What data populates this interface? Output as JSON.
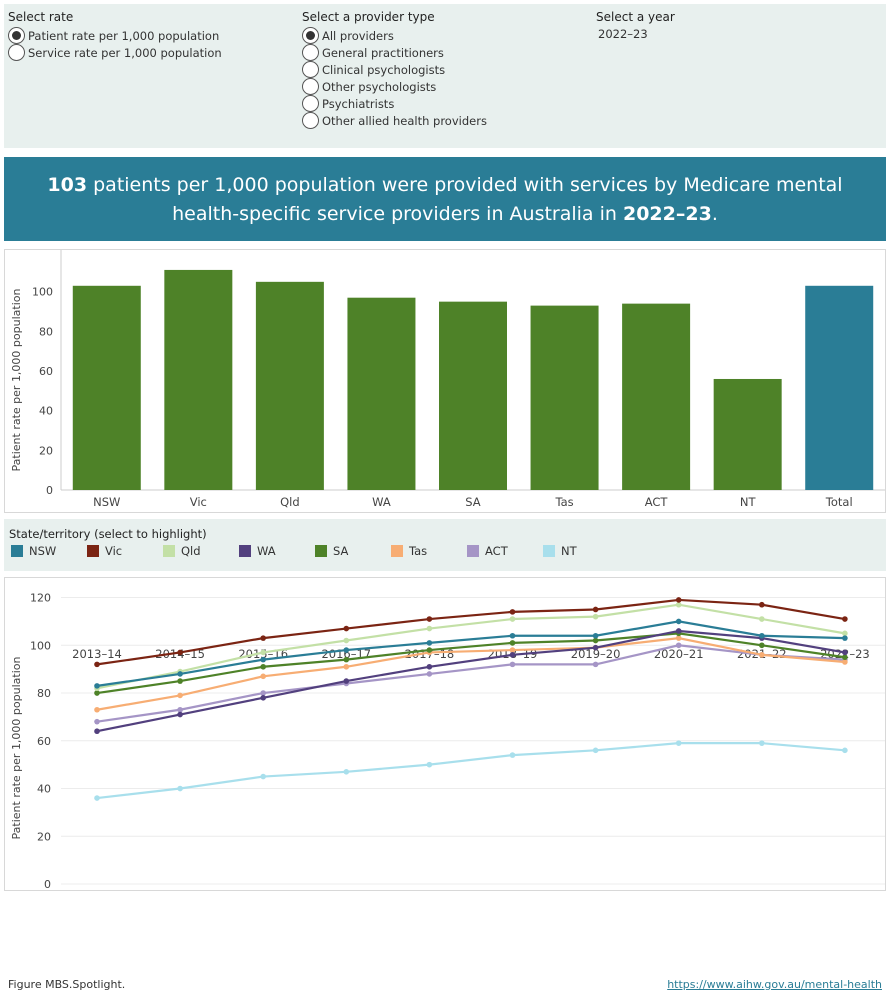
{
  "controls": {
    "rate": {
      "title": "Select rate",
      "options": [
        "Patient rate per 1,000 population",
        "Service rate per 1,000 population"
      ],
      "selected": 0
    },
    "provider": {
      "title": "Select a provider type",
      "options": [
        "All providers",
        "General practitioners",
        "Clinical psychologists",
        "Other psychologists",
        "Psychiatrists",
        "Other allied health providers"
      ],
      "selected": 0
    },
    "year": {
      "title": "Select a year",
      "value": "2022–23"
    }
  },
  "banner": {
    "value": "103",
    "text1": " patients per 1,000 population were provided with services by Medicare mental health-specific service providers  in Australia in ",
    "year": "2022–23",
    "end": "."
  },
  "colors": {
    "bar_state": "#4e8228",
    "bar_total": "#2a7d96",
    "NSW": "#2a7d96",
    "Vic": "#7b2413",
    "Qld": "#c3e0a6",
    "WA": "#52407e",
    "SA": "#4e8228",
    "Tas": "#f7ad73",
    "ACT": "#a595c6",
    "NT": "#a8dfec"
  },
  "chart_data": [
    {
      "type": "bar",
      "categories": [
        "NSW",
        "Vic",
        "Qld",
        "WA",
        "SA",
        "Tas",
        "ACT",
        "NT",
        "Total"
      ],
      "values": [
        103,
        111,
        105,
        97,
        95,
        93,
        94,
        56,
        103
      ],
      "ylabel": "Patient rate per 1,000 population",
      "yticks": [
        0,
        20,
        40,
        60,
        80,
        100
      ],
      "ylim": [
        0,
        115
      ]
    },
    {
      "type": "line",
      "x": [
        "2013–14",
        "2014–15",
        "2015–16",
        "2016–17",
        "2017–18",
        "2018–19",
        "2019–20",
        "2020–21",
        "2021–22",
        "2022–23"
      ],
      "ylabel": "Patient rate per 1,000 population",
      "yticks": [
        0,
        20,
        40,
        60,
        80,
        100,
        120
      ],
      "ylim": [
        0,
        124
      ],
      "legend_title": "State/territory (select to highlight)",
      "series": [
        {
          "name": "NSW",
          "values": [
            83,
            88,
            94,
            98,
            101,
            104,
            104,
            110,
            104,
            103
          ]
        },
        {
          "name": "Vic",
          "values": [
            92,
            97,
            103,
            107,
            111,
            114,
            115,
            119,
            117,
            111
          ]
        },
        {
          "name": "Qld",
          "values": [
            82,
            89,
            97,
            102,
            107,
            111,
            112,
            117,
            111,
            105
          ]
        },
        {
          "name": "WA",
          "values": [
            64,
            71,
            78,
            85,
            91,
            96,
            99,
            106,
            103,
            97
          ]
        },
        {
          "name": "SA",
          "values": [
            80,
            85,
            91,
            94,
            98,
            101,
            102,
            105,
            100,
            95
          ]
        },
        {
          "name": "Tas",
          "values": [
            73,
            79,
            87,
            91,
            97,
            98,
            99,
            103,
            96,
            93
          ]
        },
        {
          "name": "ACT",
          "values": [
            68,
            73,
            80,
            84,
            88,
            92,
            92,
            100,
            96,
            94
          ]
        },
        {
          "name": "NT",
          "values": [
            36,
            40,
            45,
            47,
            50,
            54,
            56,
            59,
            59,
            56
          ]
        }
      ]
    }
  ],
  "footer": {
    "left": "Figure MBS.Spotlight.",
    "right": "https://www.aihw.gov.au/mental-health"
  }
}
